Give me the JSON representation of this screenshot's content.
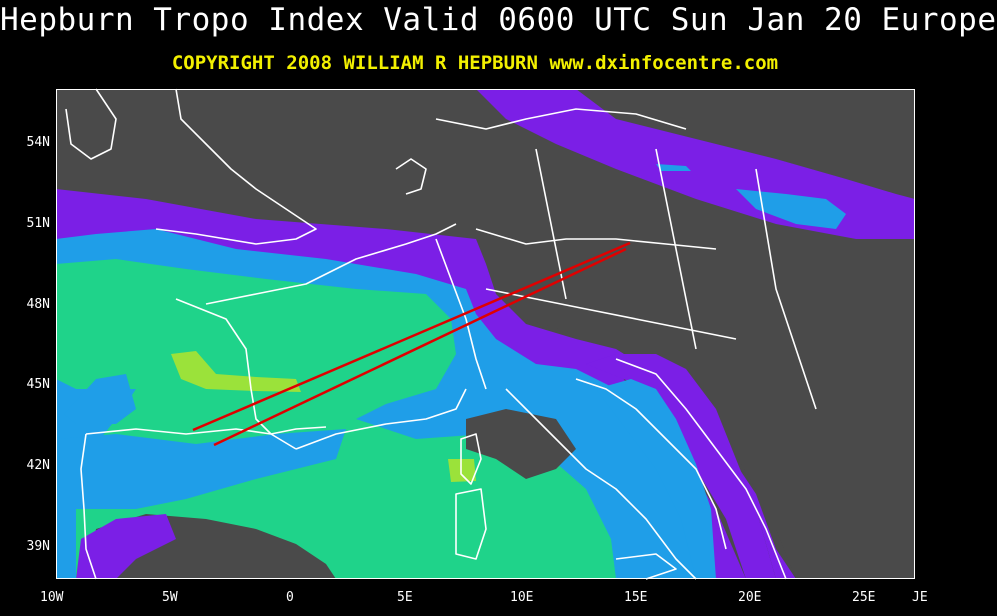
{
  "header": {
    "title": "Hepburn Tropo Index Valid 0600 UTC Sun Jan 20 Europe",
    "subtitle": "COPYRIGHT 2008   WILLIAM R HEPBURN   www.dxinfocentre.com"
  },
  "axes": {
    "lat_labels": [
      "54N",
      "51N",
      "48N",
      "45N",
      "42N",
      "39N"
    ],
    "lon_labels": [
      "10W",
      "5W",
      "0",
      "5E",
      "10E",
      "15E",
      "20E",
      "25E",
      "JE"
    ]
  },
  "colors": {
    "background": "#000000",
    "sea_land_base": "#4a4a4a",
    "index_violet": "#7b1fe6",
    "index_blue": "#1f9ee8",
    "index_green": "#1fd38a",
    "index_lime": "#9be23a",
    "coastlines": "#ffffff",
    "path_lines": "#e00000"
  }
}
